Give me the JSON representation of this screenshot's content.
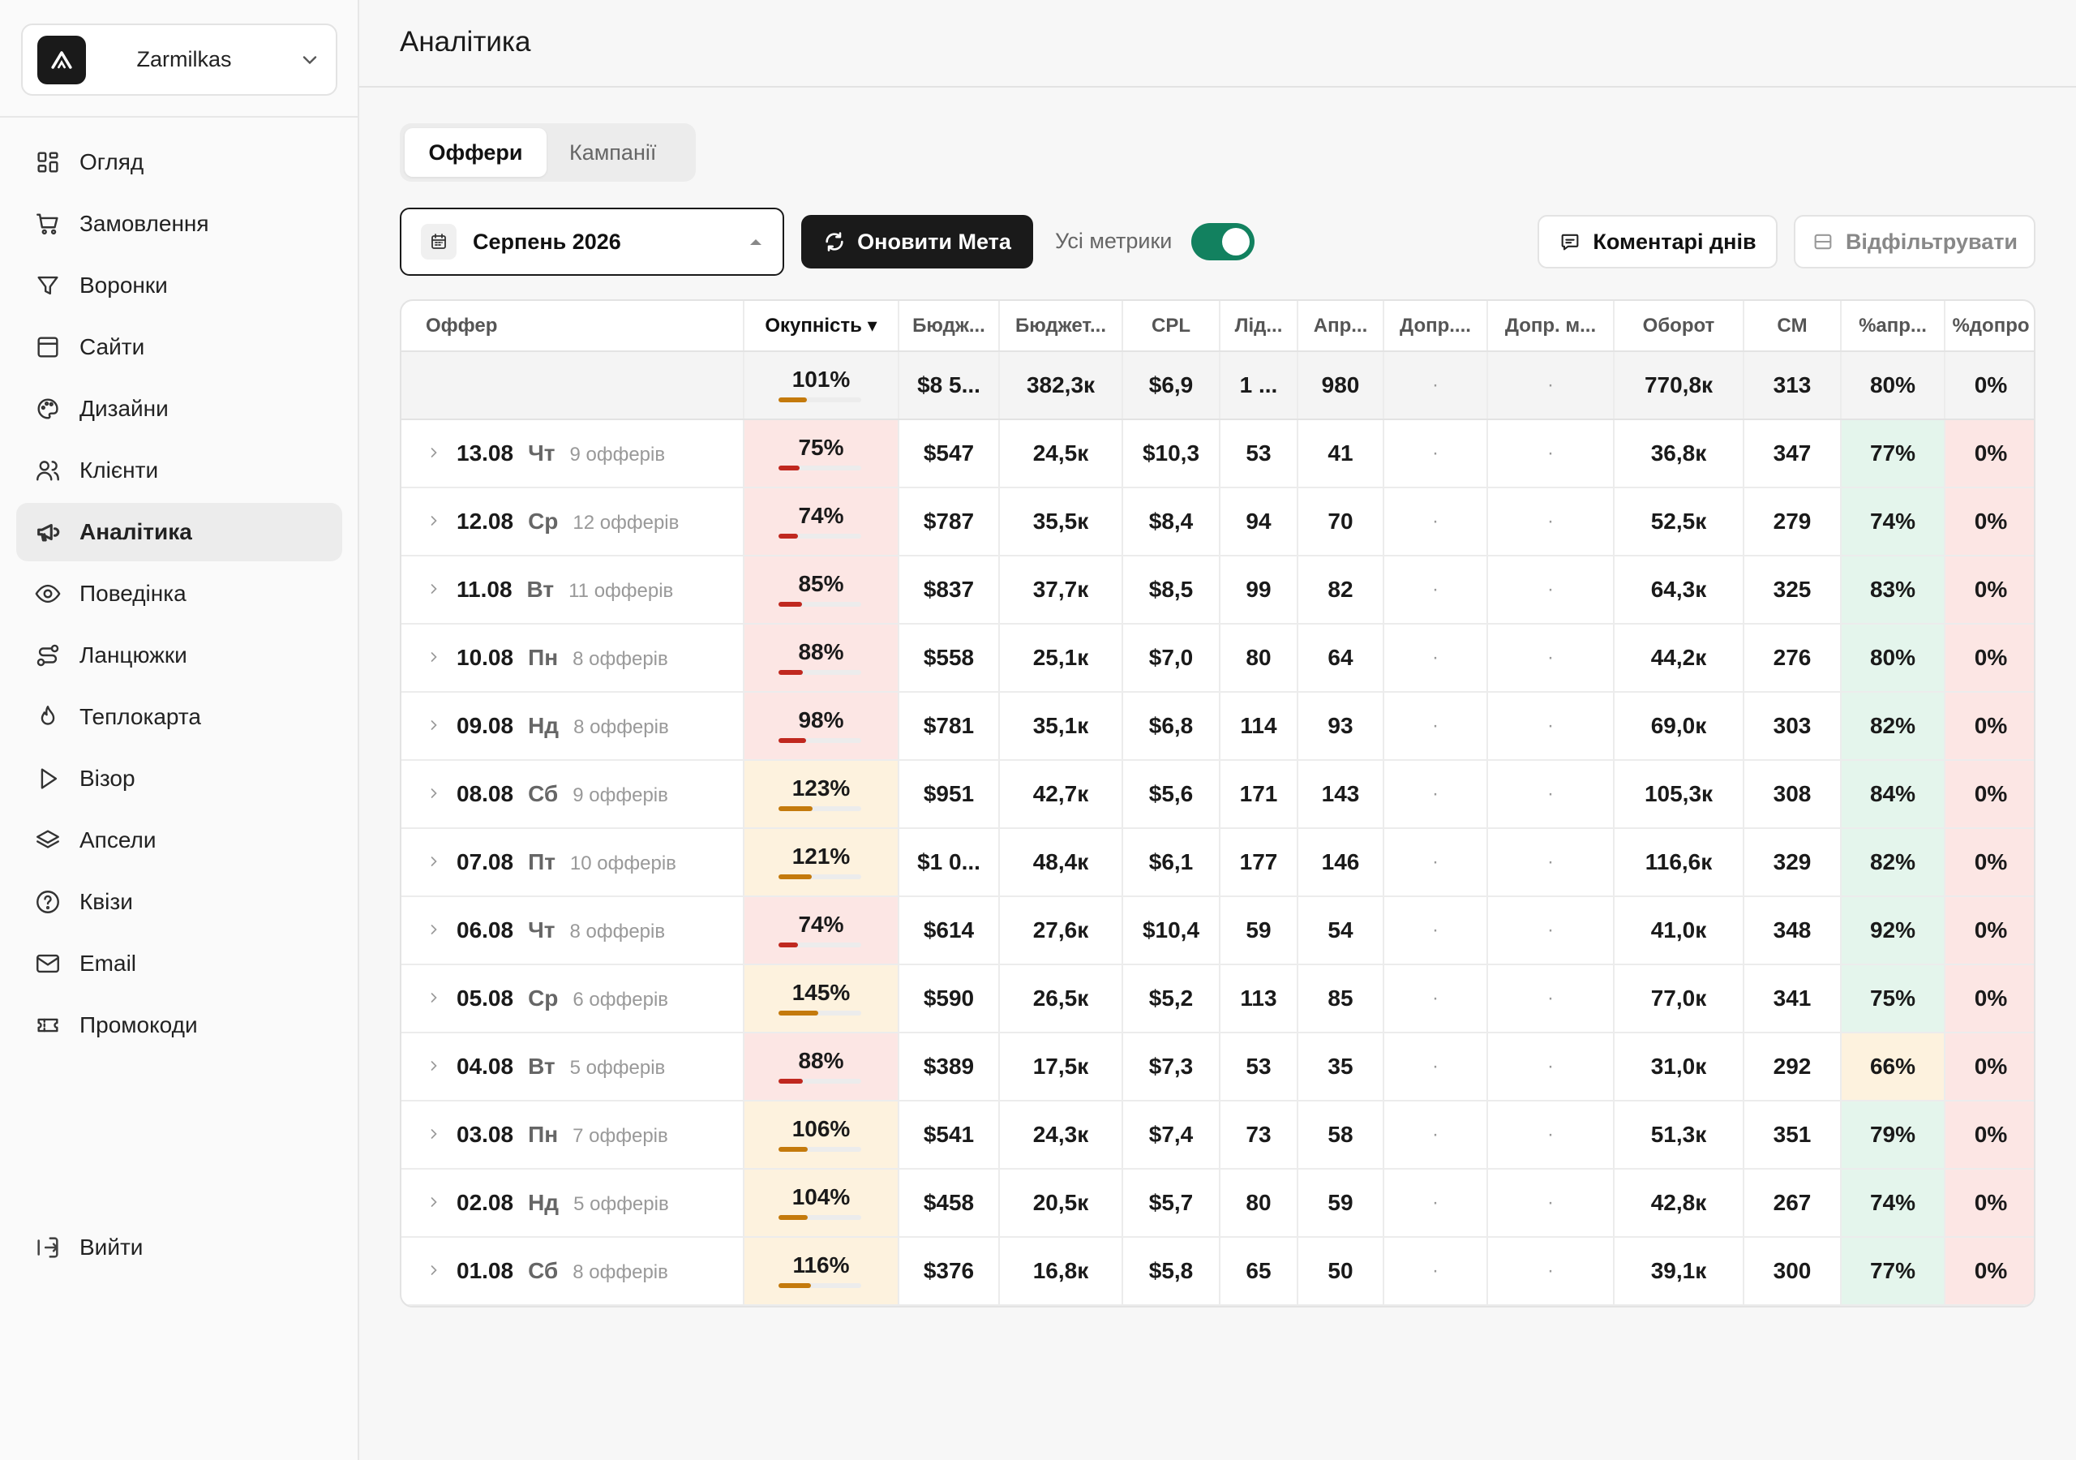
{
  "workspace": {
    "name": "Zarmilkas"
  },
  "sidebar": {
    "items": [
      {
        "label": "Огляд",
        "icon": "grid-icon",
        "active": false
      },
      {
        "label": "Замовлення",
        "icon": "cart-icon",
        "active": false
      },
      {
        "label": "Воронки",
        "icon": "funnel-icon",
        "active": false
      },
      {
        "label": "Сайти",
        "icon": "browser-icon",
        "active": false
      },
      {
        "label": "Дизайни",
        "icon": "palette-icon",
        "active": false
      },
      {
        "label": "Клієнти",
        "icon": "users-icon",
        "active": false
      },
      {
        "label": "Аналітика",
        "icon": "megaphone-icon",
        "active": true
      },
      {
        "label": "Поведінка",
        "icon": "eye-icon",
        "active": false
      },
      {
        "label": "Ланцюжки",
        "icon": "route-icon",
        "active": false
      },
      {
        "label": "Теплокарта",
        "icon": "flame-icon",
        "active": false
      },
      {
        "label": "Візор",
        "icon": "play-icon",
        "active": false
      },
      {
        "label": "Апсели",
        "icon": "layers-icon",
        "active": false
      },
      {
        "label": "Квізи",
        "icon": "question-icon",
        "active": false
      },
      {
        "label": "Email",
        "icon": "mail-icon",
        "active": false
      },
      {
        "label": "Промокоди",
        "icon": "ticket-icon",
        "active": false
      }
    ],
    "logout": "Вийти"
  },
  "header": {
    "title": "Аналітика"
  },
  "tabs": [
    {
      "label": "Оффери",
      "active": true
    },
    {
      "label": "Кампанії",
      "active": false
    }
  ],
  "toolbar": {
    "month": "Серпень 2026",
    "refresh": "Оновити Мета",
    "all_metrics": "Усі метрики",
    "all_metrics_on": true,
    "comments": "Коментарі днів",
    "filter": "Відфільтрувати"
  },
  "table": {
    "columns": [
      "Оффер",
      "Окупність ▾",
      "Бюдж...",
      "Бюджет...",
      "CPL",
      "Лід...",
      "Апр...",
      "Допр....",
      "Допр. м...",
      "Оборот",
      "CM",
      "%апр...",
      "%допро"
    ],
    "total": {
      "roi": "101%",
      "roi_frac": 0.34,
      "budget_usd": "$8 5...",
      "budget_uah": "382,3к",
      "cpl": "$6,9",
      "leads": "1 ...",
      "approved": "980",
      "extra1": "·",
      "extra2": "·",
      "turnover": "770,8к",
      "cm": "313",
      "approve_pct": "80%",
      "upsell_pct": "0%"
    },
    "rows": [
      {
        "date": "13.08",
        "dow": "Чт",
        "offers": "9 офферів",
        "roi": "75%",
        "roi_frac": 0.25,
        "roi_color": "#c0281f",
        "roi_bg": "red",
        "budget_usd": "$547",
        "budget_uah": "24,5к",
        "cpl": "$10,3",
        "leads": "53",
        "approved": "41",
        "extra1": "·",
        "extra2": "·",
        "turnover": "36,8к",
        "cm": "347",
        "approve_pct": "77%",
        "approve_bg": "green",
        "upsell_pct": "0%"
      },
      {
        "date": "12.08",
        "dow": "Ср",
        "offers": "12 офферів",
        "roi": "74%",
        "roi_frac": 0.24,
        "roi_color": "#c0281f",
        "roi_bg": "red",
        "budget_usd": "$787",
        "budget_uah": "35,5к",
        "cpl": "$8,4",
        "leads": "94",
        "approved": "70",
        "extra1": "·",
        "extra2": "·",
        "turnover": "52,5к",
        "cm": "279",
        "approve_pct": "74%",
        "approve_bg": "green",
        "upsell_pct": "0%"
      },
      {
        "date": "11.08",
        "dow": "Вт",
        "offers": "11 офферів",
        "roi": "85%",
        "roi_frac": 0.28,
        "roi_color": "#c0281f",
        "roi_bg": "red",
        "budget_usd": "$837",
        "budget_uah": "37,7к",
        "cpl": "$8,5",
        "leads": "99",
        "approved": "82",
        "extra1": "·",
        "extra2": "·",
        "turnover": "64,3к",
        "cm": "325",
        "approve_pct": "83%",
        "approve_bg": "green",
        "upsell_pct": "0%"
      },
      {
        "date": "10.08",
        "dow": "Пн",
        "offers": "8 офферів",
        "roi": "88%",
        "roi_frac": 0.29,
        "roi_color": "#c0281f",
        "roi_bg": "red",
        "budget_usd": "$558",
        "budget_uah": "25,1к",
        "cpl": "$7,0",
        "leads": "80",
        "approved": "64",
        "extra1": "·",
        "extra2": "·",
        "turnover": "44,2к",
        "cm": "276",
        "approve_pct": "80%",
        "approve_bg": "green",
        "upsell_pct": "0%"
      },
      {
        "date": "09.08",
        "dow": "Нд",
        "offers": "8 офферів",
        "roi": "98%",
        "roi_frac": 0.33,
        "roi_color": "#c0281f",
        "roi_bg": "red",
        "budget_usd": "$781",
        "budget_uah": "35,1к",
        "cpl": "$6,8",
        "leads": "114",
        "approved": "93",
        "extra1": "·",
        "extra2": "·",
        "turnover": "69,0к",
        "cm": "303",
        "approve_pct": "82%",
        "approve_bg": "green",
        "upsell_pct": "0%"
      },
      {
        "date": "08.08",
        "dow": "Сб",
        "offers": "9 офферів",
        "roi": "123%",
        "roi_frac": 0.41,
        "roi_color": "#c47a0c",
        "roi_bg": "amber",
        "budget_usd": "$951",
        "budget_uah": "42,7к",
        "cpl": "$5,6",
        "leads": "171",
        "approved": "143",
        "extra1": "·",
        "extra2": "·",
        "turnover": "105,3к",
        "cm": "308",
        "approve_pct": "84%",
        "approve_bg": "green",
        "upsell_pct": "0%"
      },
      {
        "date": "07.08",
        "dow": "Пт",
        "offers": "10 офферів",
        "roi": "121%",
        "roi_frac": 0.4,
        "roi_color": "#c47a0c",
        "roi_bg": "amber",
        "budget_usd": "$1 0...",
        "budget_uah": "48,4к",
        "cpl": "$6,1",
        "leads": "177",
        "approved": "146",
        "extra1": "·",
        "extra2": "·",
        "turnover": "116,6к",
        "cm": "329",
        "approve_pct": "82%",
        "approve_bg": "green",
        "upsell_pct": "0%"
      },
      {
        "date": "06.08",
        "dow": "Чт",
        "offers": "8 офферів",
        "roi": "74%",
        "roi_frac": 0.24,
        "roi_color": "#c0281f",
        "roi_bg": "red",
        "budget_usd": "$614",
        "budget_uah": "27,6к",
        "cpl": "$10,4",
        "leads": "59",
        "approved": "54",
        "extra1": "·",
        "extra2": "·",
        "turnover": "41,0к",
        "cm": "348",
        "approve_pct": "92%",
        "approve_bg": "green",
        "upsell_pct": "0%"
      },
      {
        "date": "05.08",
        "dow": "Ср",
        "offers": "6 офферів",
        "roi": "145%",
        "roi_frac": 0.48,
        "roi_color": "#c47a0c",
        "roi_bg": "amber",
        "budget_usd": "$590",
        "budget_uah": "26,5к",
        "cpl": "$5,2",
        "leads": "113",
        "approved": "85",
        "extra1": "·",
        "extra2": "·",
        "turnover": "77,0к",
        "cm": "341",
        "approve_pct": "75%",
        "approve_bg": "green",
        "upsell_pct": "0%"
      },
      {
        "date": "04.08",
        "dow": "Вт",
        "offers": "5 офферів",
        "roi": "88%",
        "roi_frac": 0.29,
        "roi_color": "#c0281f",
        "roi_bg": "red",
        "budget_usd": "$389",
        "budget_uah": "17,5к",
        "cpl": "$7,3",
        "leads": "53",
        "approved": "35",
        "extra1": "·",
        "extra2": "·",
        "turnover": "31,0к",
        "cm": "292",
        "approve_pct": "66%",
        "approve_bg": "amber",
        "upsell_pct": "0%"
      },
      {
        "date": "03.08",
        "dow": "Пн",
        "offers": "7 офферів",
        "roi": "106%",
        "roi_frac": 0.35,
        "roi_color": "#c47a0c",
        "roi_bg": "amber",
        "budget_usd": "$541",
        "budget_uah": "24,3к",
        "cpl": "$7,4",
        "leads": "73",
        "approved": "58",
        "extra1": "·",
        "extra2": "·",
        "turnover": "51,3к",
        "cm": "351",
        "approve_pct": "79%",
        "approve_bg": "green",
        "upsell_pct": "0%"
      },
      {
        "date": "02.08",
        "dow": "Нд",
        "offers": "5 офферів",
        "roi": "104%",
        "roi_frac": 0.35,
        "roi_color": "#c47a0c",
        "roi_bg": "amber",
        "budget_usd": "$458",
        "budget_uah": "20,5к",
        "cpl": "$5,7",
        "leads": "80",
        "approved": "59",
        "extra1": "·",
        "extra2": "·",
        "turnover": "42,8к",
        "cm": "267",
        "approve_pct": "74%",
        "approve_bg": "green",
        "upsell_pct": "0%"
      },
      {
        "date": "01.08",
        "dow": "Сб",
        "offers": "8 офферів",
        "roi": "116%",
        "roi_frac": 0.39,
        "roi_color": "#c47a0c",
        "roi_bg": "amber",
        "budget_usd": "$376",
        "budget_uah": "16,8к",
        "cpl": "$5,8",
        "leads": "65",
        "approved": "50",
        "extra1": "·",
        "extra2": "·",
        "turnover": "39,1к",
        "cm": "300",
        "approve_pct": "77%",
        "approve_bg": "green",
        "upsell_pct": "0%"
      }
    ]
  }
}
